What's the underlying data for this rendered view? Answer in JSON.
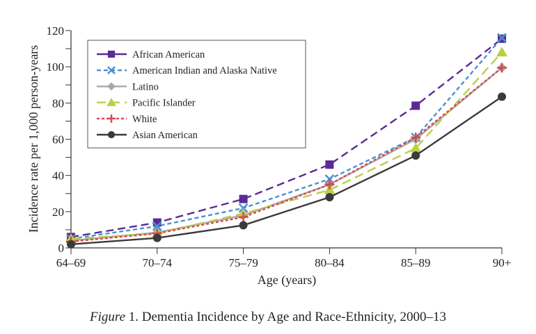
{
  "chart_data": {
    "type": "line",
    "title": "",
    "xlabel": "Age (years)",
    "ylabel": "Incidence rate per 1,000 person-years",
    "categories": [
      "64–69",
      "70–74",
      "75–79",
      "80–84",
      "85–89",
      "90+"
    ],
    "ylim": [
      0,
      120
    ],
    "yticks": [
      0,
      20,
      40,
      60,
      80,
      100,
      120
    ],
    "grid": false,
    "legend_position": "top-left",
    "series": [
      {
        "name": "African American",
        "color": "#5b2a96",
        "marker": "square",
        "dash": "dashed",
        "values": [
          6,
          14,
          27,
          46,
          78.5,
          115.5
        ]
      },
      {
        "name": "American Indian and Alaska Native",
        "color": "#4a90d0",
        "marker": "x",
        "dash": "short-dashed",
        "values": [
          5,
          12,
          22,
          38,
          61,
          116
        ]
      },
      {
        "name": "Latino",
        "color": "#a8a8a8",
        "marker": "diamond",
        "dash": "solid",
        "values": [
          4,
          8.5,
          18,
          35,
          60,
          99.5
        ]
      },
      {
        "name": "Pacific Islander",
        "color": "#b9cf4a",
        "marker": "triangle",
        "dash": "long-dashed",
        "values": [
          5,
          8,
          19,
          32,
          55,
          108
        ]
      },
      {
        "name": "White",
        "color": "#d9484f",
        "marker": "plus",
        "dash": "dotted",
        "values": [
          3.5,
          8,
          17,
          35,
          61,
          99.5
        ]
      },
      {
        "name": "Asian American",
        "color": "#3a3a3a",
        "marker": "circle",
        "dash": "solid",
        "values": [
          2,
          5.5,
          12.5,
          28,
          51,
          83.5
        ]
      }
    ]
  },
  "caption": {
    "figure_label": "Figure",
    "text": " 1. Dementia Incidence by Age and Race-Ethnicity, 2000–13"
  }
}
